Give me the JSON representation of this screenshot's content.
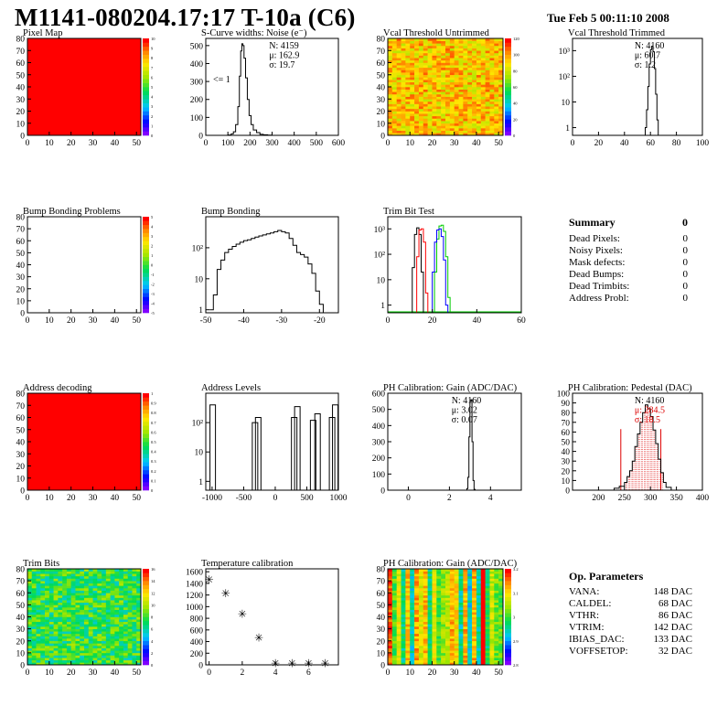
{
  "page": {
    "title": "M1141-080204.17:17 T-10a (C6)",
    "datestamp": "Tue Feb  5 00:11:10 2008"
  },
  "colors": {
    "map_red": "#ff0000",
    "hist_line": "#000000",
    "trim_red": "#ff0000",
    "trim_green": "#00cc00",
    "trim_blue": "#0000ff",
    "fit_red": "#dd0000"
  },
  "summary": {
    "title": "Summary",
    "total": "0",
    "rows": [
      {
        "label": "Dead Pixels:",
        "value": "0"
      },
      {
        "label": "Noisy Pixels:",
        "value": "0"
      },
      {
        "label": "Mask defects:",
        "value": "0"
      },
      {
        "label": "Dead Bumps:",
        "value": "0"
      },
      {
        "label": "Dead Trimbits:",
        "value": "0"
      },
      {
        "label": "Address Probl:",
        "value": "0"
      }
    ]
  },
  "params": {
    "title": "Op. Parameters",
    "rows": [
      {
        "label": "VANA:",
        "value": "148 DAC"
      },
      {
        "label": "CALDEL:",
        "value": "68 DAC"
      },
      {
        "label": "VTHR:",
        "value": "86 DAC"
      },
      {
        "label": "VTRIM:",
        "value": "142 DAC"
      },
      {
        "label": "IBIAS_DAC:",
        "value": "133 DAC"
      },
      {
        "label": "VOFFSETOP:",
        "value": "32 DAC"
      }
    ]
  },
  "chart_data": [
    {
      "id": "pixel-map",
      "type": "heatmap",
      "title": "Pixel Map",
      "x": {
        "range": [
          0,
          52
        ],
        "ticks": [
          0,
          10,
          20,
          30,
          40,
          50
        ]
      },
      "y": {
        "range": [
          0,
          80
        ],
        "ticks": [
          0,
          10,
          20,
          30,
          40,
          50,
          60,
          70,
          80
        ]
      },
      "fill": "uniform",
      "color": "#ff0000",
      "palette_ticks": [
        "0",
        "1",
        "2",
        "3",
        "4",
        "5",
        "6",
        "7",
        "8",
        "9",
        "10"
      ]
    },
    {
      "id": "scurve-widths",
      "type": "line",
      "title": "S-Curve widths: Noise (e⁻)",
      "stats": [
        "N: 4159",
        "μ: 162.9",
        "σ: 19.7"
      ],
      "annotation": "<= 1",
      "x": {
        "range": [
          0,
          600
        ],
        "ticks": [
          0,
          100,
          200,
          300,
          400,
          500,
          600
        ]
      },
      "y": {
        "range": [
          0,
          540
        ],
        "ticks": [
          0,
          100,
          200,
          300,
          400,
          500
        ]
      },
      "points": [
        [
          80,
          0
        ],
        [
          100,
          2
        ],
        [
          115,
          8
        ],
        [
          125,
          20
        ],
        [
          135,
          60
        ],
        [
          145,
          160
        ],
        [
          152,
          330
        ],
        [
          158,
          470
        ],
        [
          163,
          510
        ],
        [
          168,
          500
        ],
        [
          173,
          430
        ],
        [
          180,
          320
        ],
        [
          188,
          200
        ],
        [
          196,
          110
        ],
        [
          205,
          60
        ],
        [
          215,
          30
        ],
        [
          230,
          15
        ],
        [
          245,
          6
        ],
        [
          260,
          3
        ],
        [
          280,
          1
        ],
        [
          300,
          0
        ]
      ]
    },
    {
      "id": "vcal-untrimmed",
      "type": "heatmap",
      "title": "Vcal Threshold Untrimmed",
      "x": {
        "range": [
          0,
          52
        ],
        "ticks": [
          0,
          10,
          20,
          30,
          40,
          50
        ]
      },
      "y": {
        "range": [
          0,
          80
        ],
        "ticks": [
          0,
          10,
          20,
          30,
          40,
          50,
          60,
          70,
          80
        ]
      },
      "fill": "noisy-orange",
      "palette_ticks": [
        "0",
        "20",
        "40",
        "60",
        "80",
        "100",
        "120"
      ]
    },
    {
      "id": "vcal-trimmed",
      "type": "line",
      "title": "Vcal Threshold Trimmed",
      "stats": [
        "N: 4160",
        "μ: 60.7",
        "σ: 1.2"
      ],
      "log_y": true,
      "x": {
        "range": [
          0,
          100
        ],
        "ticks": [
          0,
          20,
          40,
          60,
          80,
          100
        ]
      },
      "y": {
        "range": [
          0.5,
          3000
        ],
        "ticks": [
          1,
          10,
          100,
          1000
        ],
        "tick_labels": [
          "1",
          "10",
          "10²",
          "10³"
        ]
      },
      "points": [
        [
          55,
          0.5
        ],
        [
          56,
          1
        ],
        [
          57,
          5
        ],
        [
          58,
          40
        ],
        [
          59,
          300
        ],
        [
          60,
          1100
        ],
        [
          61,
          1500
        ],
        [
          62,
          900
        ],
        [
          63,
          200
        ],
        [
          64,
          20
        ],
        [
          65,
          2
        ],
        [
          66,
          0.5
        ]
      ]
    },
    {
      "id": "bump-bonding-problems",
      "type": "heatmap",
      "title": "Bump Bonding Problems",
      "x": {
        "range": [
          0,
          52
        ],
        "ticks": [
          0,
          10,
          20,
          30,
          40,
          50
        ]
      },
      "y": {
        "range": [
          0,
          80
        ],
        "ticks": [
          0,
          10,
          20,
          30,
          40,
          50,
          60,
          70,
          80
        ]
      },
      "fill": "empty",
      "palette_ticks": [
        "-5",
        "-4",
        "-3",
        "-2",
        "-1",
        "0",
        "1",
        "2",
        "3",
        "4",
        "5"
      ]
    },
    {
      "id": "bump-bonding",
      "type": "line",
      "title": "Bump Bonding",
      "log_y": true,
      "x": {
        "range": [
          -50,
          -15
        ],
        "ticks": [
          -50,
          -40,
          -30,
          -20
        ]
      },
      "y": {
        "range": [
          0.8,
          1000
        ],
        "ticks": [
          1,
          10,
          100
        ],
        "tick_labels": [
          "1",
          "10",
          "10²"
        ]
      },
      "points": [
        [
          -49,
          1
        ],
        [
          -48,
          3
        ],
        [
          -47,
          20
        ],
        [
          -46,
          40
        ],
        [
          -45,
          70
        ],
        [
          -44,
          90
        ],
        [
          -43,
          110
        ],
        [
          -42,
          130
        ],
        [
          -41,
          150
        ],
        [
          -40,
          170
        ],
        [
          -39,
          180
        ],
        [
          -38,
          200
        ],
        [
          -37,
          220
        ],
        [
          -36,
          240
        ],
        [
          -35,
          260
        ],
        [
          -34,
          280
        ],
        [
          -33,
          300
        ],
        [
          -32,
          330
        ],
        [
          -31,
          360
        ],
        [
          -30,
          330
        ],
        [
          -29,
          300
        ],
        [
          -28,
          200
        ],
        [
          -27,
          120
        ],
        [
          -26,
          70
        ],
        [
          -25,
          60
        ],
        [
          -24,
          50
        ],
        [
          -23,
          30
        ],
        [
          -22,
          15
        ],
        [
          -21,
          4
        ],
        [
          -20,
          1.5
        ],
        [
          -19,
          0.8
        ]
      ]
    },
    {
      "id": "trim-bit-test",
      "type": "line",
      "title": "Trim Bit Test",
      "log_y": true,
      "x": {
        "range": [
          0,
          60
        ],
        "ticks": [
          0,
          20,
          40,
          60
        ]
      },
      "y": {
        "range": [
          0.5,
          3000
        ],
        "ticks": [
          1,
          10,
          100,
          1000
        ],
        "tick_labels": [
          "1",
          "10",
          "10²",
          "10³"
        ]
      },
      "series": [
        {
          "color": "#000000",
          "points": [
            [
              10,
              0.5
            ],
            [
              11,
              30
            ],
            [
              12,
              600
            ],
            [
              13,
              1100
            ],
            [
              14,
              600
            ],
            [
              15,
              20
            ],
            [
              16,
              0.5
            ]
          ]
        },
        {
          "color": "#ff0000",
          "points": [
            [
              12,
              0.5
            ],
            [
              13,
              80
            ],
            [
              14,
              900
            ],
            [
              15,
              1000
            ],
            [
              16,
              300
            ],
            [
              17,
              3
            ],
            [
              18,
              0.5
            ]
          ]
        },
        {
          "color": "#00cc00",
          "points": [
            [
              20,
              0.5
            ],
            [
              21,
              20
            ],
            [
              22,
              400
            ],
            [
              23,
              1300
            ],
            [
              24,
              1400
            ],
            [
              25,
              800
            ],
            [
              26,
              80
            ],
            [
              27,
              2
            ],
            [
              28,
              0.5
            ]
          ]
        },
        {
          "color": "#0000ff",
          "points": [
            [
              19,
              0.5
            ],
            [
              20,
              20
            ],
            [
              21,
              300
            ],
            [
              22,
              900
            ],
            [
              23,
              1000
            ],
            [
              24,
              500
            ],
            [
              25,
              60
            ],
            [
              26,
              1
            ],
            [
              27,
              0.5
            ]
          ]
        }
      ]
    },
    {
      "id": "address-decoding",
      "type": "heatmap",
      "title": "Address decoding",
      "x": {
        "range": [
          0,
          52
        ],
        "ticks": [
          0,
          10,
          20,
          30,
          40,
          50
        ]
      },
      "y": {
        "range": [
          0,
          80
        ],
        "ticks": [
          0,
          10,
          20,
          30,
          40,
          50,
          60,
          70,
          80
        ]
      },
      "fill": "uniform",
      "color": "#ff0000",
      "palette_ticks": [
        "0",
        "0.1",
        "0.2",
        "0.3",
        "0.4",
        "0.5",
        "0.6",
        "0.7",
        "0.8",
        "0.9",
        "1"
      ]
    },
    {
      "id": "address-levels",
      "type": "line",
      "title": "Address Levels",
      "log_y": true,
      "x": {
        "range": [
          -1100,
          1000
        ],
        "ticks": [
          -1000,
          -500,
          0,
          500,
          1000
        ]
      },
      "y": {
        "range": [
          0.5,
          1000
        ],
        "ticks": [
          1,
          10,
          100
        ],
        "tick_labels": [
          "1",
          "10",
          "10²"
        ]
      },
      "peaks": [
        [
          -990,
          400
        ],
        [
          -320,
          100
        ],
        [
          -270,
          150
        ],
        [
          300,
          150
        ],
        [
          350,
          350
        ],
        [
          600,
          120
        ],
        [
          670,
          200
        ],
        [
          900,
          150
        ],
        [
          950,
          400
        ]
      ]
    },
    {
      "id": "ph-gain",
      "type": "line",
      "title": "PH Calibration: Gain (ADC/DAC)",
      "stats": [
        "N: 4160",
        "μ: 3.02",
        "σ: 0.07"
      ],
      "x": {
        "range": [
          -1,
          5.5
        ],
        "ticks": [
          0,
          2,
          4
        ]
      },
      "y": {
        "range": [
          0,
          600
        ],
        "ticks": [
          0,
          100,
          200,
          300,
          400,
          500,
          600
        ]
      },
      "points": [
        [
          2.8,
          0
        ],
        [
          2.85,
          10
        ],
        [
          2.9,
          80
        ],
        [
          2.95,
          330
        ],
        [
          3.0,
          550
        ],
        [
          3.05,
          560
        ],
        [
          3.1,
          300
        ],
        [
          3.15,
          60
        ],
        [
          3.2,
          5
        ],
        [
          3.25,
          0
        ]
      ]
    },
    {
      "id": "ph-pedestal",
      "type": "line",
      "title": "PH Calibration: Pedestal (DAC)",
      "stats": [
        "N: 4160",
        "μ: 284.5",
        "σ: 18.5"
      ],
      "x": {
        "range": [
          150,
          400
        ],
        "ticks": [
          200,
          250,
          300,
          350,
          400
        ]
      },
      "y": {
        "range": [
          0,
          100
        ],
        "ticks": [
          0,
          10,
          20,
          30,
          40,
          50,
          60,
          70,
          80,
          90,
          100
        ]
      },
      "points": [
        [
          220,
          0
        ],
        [
          230,
          2
        ],
        [
          240,
          4
        ],
        [
          250,
          8
        ],
        [
          255,
          14
        ],
        [
          260,
          20
        ],
        [
          265,
          30
        ],
        [
          270,
          45
        ],
        [
          275,
          58
        ],
        [
          280,
          70
        ],
        [
          285,
          80
        ],
        [
          290,
          88
        ],
        [
          295,
          84
        ],
        [
          300,
          76
        ],
        [
          305,
          62
        ],
        [
          310,
          48
        ],
        [
          315,
          32
        ],
        [
          320,
          18
        ],
        [
          325,
          8
        ],
        [
          330,
          3
        ],
        [
          340,
          0
        ]
      ],
      "fit_range": [
        250,
        320
      ]
    },
    {
      "id": "trim-bits",
      "type": "heatmap",
      "title": "Trim Bits",
      "x": {
        "range": [
          0,
          52
        ],
        "ticks": [
          0,
          10,
          20,
          30,
          40,
          50
        ]
      },
      "y": {
        "range": [
          0,
          80
        ],
        "ticks": [
          0,
          10,
          20,
          30,
          40,
          50,
          60,
          70,
          80
        ]
      },
      "fill": "noisy-green",
      "palette_ticks": [
        "0",
        "2",
        "4",
        "6",
        "8",
        "10",
        "12",
        "14",
        "16"
      ]
    },
    {
      "id": "temperature-calibration",
      "type": "scatter",
      "title": "Temperature calibration",
      "x": {
        "range": [
          -0.2,
          7.8
        ],
        "ticks": [
          0,
          2,
          4,
          6
        ]
      },
      "y": {
        "range": [
          0,
          1650
        ],
        "ticks": [
          0,
          200,
          400,
          600,
          800,
          1000,
          1200,
          1400,
          1600
        ]
      },
      "points": [
        [
          0,
          1470
        ],
        [
          1,
          1230
        ],
        [
          2,
          880
        ],
        [
          3,
          470
        ],
        [
          4,
          30
        ],
        [
          5,
          30
        ],
        [
          6,
          30
        ],
        [
          7,
          30
        ]
      ]
    },
    {
      "id": "ph-gain-map",
      "type": "heatmap",
      "title": "PH Calibration: Gain (ADC/DAC)",
      "x": {
        "range": [
          0,
          52
        ],
        "ticks": [
          0,
          10,
          20,
          30,
          40,
          50
        ]
      },
      "y": {
        "range": [
          0,
          80
        ],
        "ticks": [
          0,
          10,
          20,
          30,
          40,
          50,
          60,
          70,
          80
        ]
      },
      "fill": "striped",
      "palette_ticks": [
        "2.8",
        "2.9",
        "3",
        "3.1",
        "3.2"
      ]
    }
  ]
}
